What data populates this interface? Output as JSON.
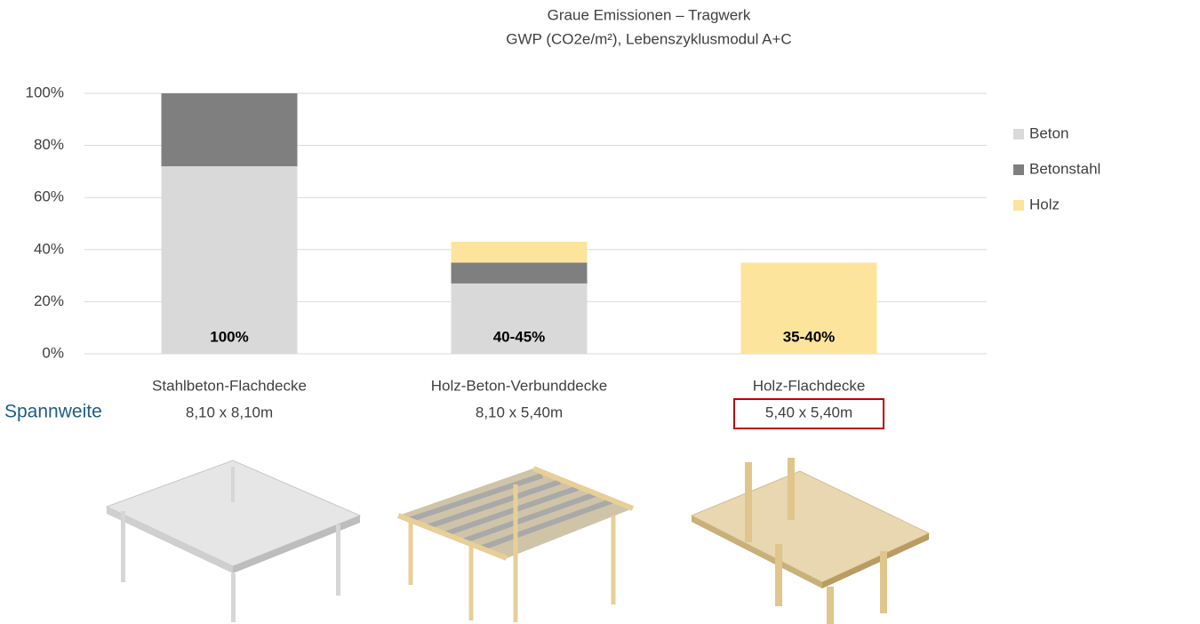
{
  "chart_data": {
    "type": "stacked_bar",
    "title": "Graue Emissionen – Tragwerk",
    "subtitle": "GWP (CO2e/m²), Lebenszyklusmodul A+C",
    "categories": [
      "Stahlbeton-Flachdecke",
      "Holz-Beton-Verbunddecke",
      "Holz-Flachdecke"
    ],
    "spans_label": "Spannweite",
    "spans": [
      "8,10 x 8,10m",
      "8,10 x 5,40m",
      "5,40 x 5,40m"
    ],
    "highlight_category": 2,
    "value_labels": [
      "100%",
      "40-45%",
      "35-40%"
    ],
    "series": [
      {
        "name": "Beton",
        "color": "#d9d9d9",
        "values": [
          72,
          27,
          0
        ]
      },
      {
        "name": "Betonstahl",
        "color": "#7f7f7f",
        "values": [
          28,
          8,
          0
        ]
      },
      {
        "name": "Holz",
        "color": "#fde49c",
        "values": [
          0,
          8,
          35
        ]
      }
    ],
    "ylim": [
      0,
      100
    ],
    "yticks": [
      {
        "value": 0,
        "label": "0%"
      },
      {
        "value": 20,
        "label": "20%"
      },
      {
        "value": 40,
        "label": "40%"
      },
      {
        "value": 60,
        "label": "60%"
      },
      {
        "value": 80,
        "label": "80%"
      },
      {
        "value": 100,
        "label": "100%"
      }
    ],
    "grid": true,
    "legend": "right"
  }
}
